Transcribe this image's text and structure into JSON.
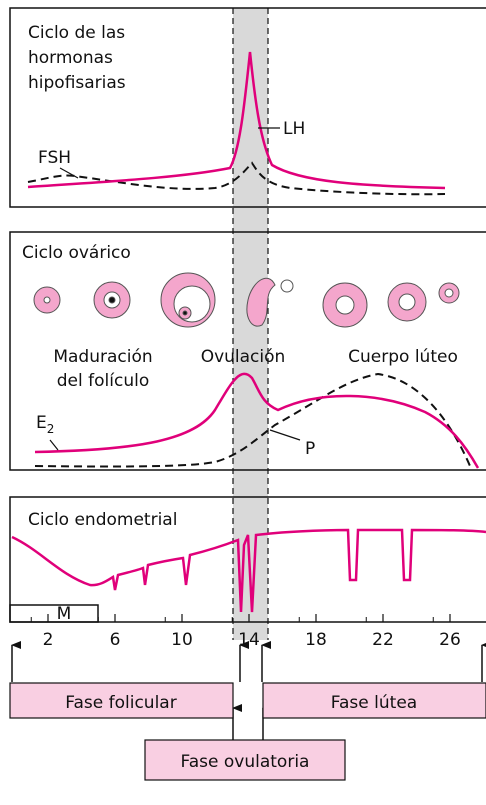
{
  "hormones": {
    "title_lines": [
      "Ciclo de las",
      "hormonas",
      "hipofisarias"
    ],
    "fsh": "FSH",
    "lh": "LH"
  },
  "ovary": {
    "title": "Ciclo ovárico",
    "maturation_lines": [
      "Maduración",
      "del folículo"
    ],
    "ovulation": "Ovulación",
    "corpus_luteum": "Cuerpo lúteo",
    "e2": {
      "base": "E",
      "sub": "2"
    },
    "p": "P"
  },
  "endometrium": {
    "title": "Ciclo endometrial",
    "menstruation": "M"
  },
  "axis": {
    "days": [
      2,
      6,
      10,
      14,
      18,
      22,
      26
    ]
  },
  "phases": {
    "follicular": "Fase folicular",
    "luteal": "Fase lútea",
    "ovulatory": "Fase ovulatoria"
  }
}
